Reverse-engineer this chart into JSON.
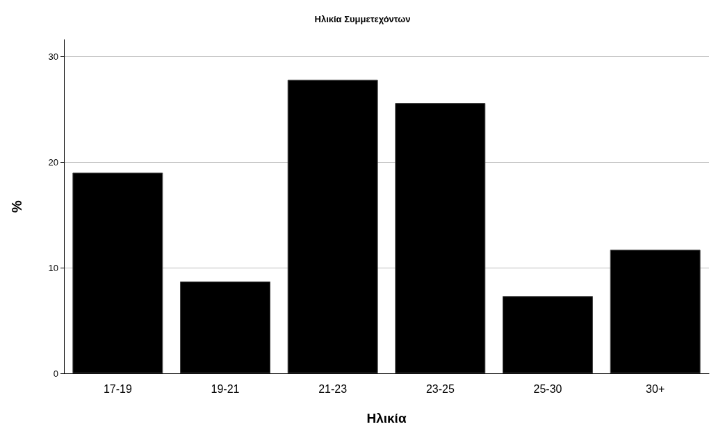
{
  "chart_data": {
    "type": "bar",
    "title": "Ηλικία Συμμετεχόντων",
    "xlabel": "Ηλικία",
    "ylabel": "%",
    "categories": [
      "17-19",
      "19-21",
      "21-23",
      "23-25",
      "25-30",
      "30+"
    ],
    "values": [
      19.0,
      8.7,
      27.8,
      25.6,
      7.3,
      11.7
    ],
    "color": "#000000",
    "ylim": [
      0,
      31.6
    ],
    "yticks": [
      0,
      10,
      20,
      30
    ],
    "grid": "y"
  }
}
